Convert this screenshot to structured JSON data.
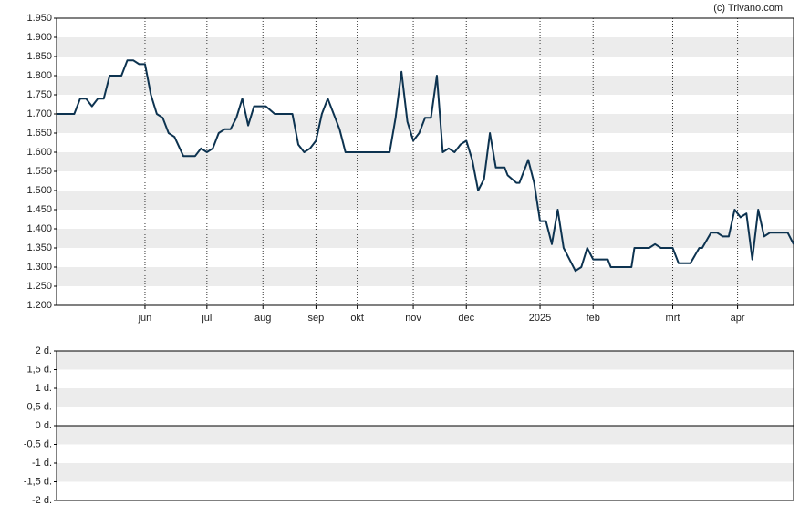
{
  "credit": "(c) Trivano.com",
  "chart_data": [
    {
      "type": "line",
      "x": [
        0,
        6,
        8,
        10,
        12,
        14,
        16,
        18,
        22,
        24,
        26,
        28,
        30,
        32,
        34,
        36,
        38,
        40,
        43,
        47,
        49,
        51,
        53,
        55,
        57,
        59,
        61,
        63,
        65,
        67,
        71,
        74,
        80,
        82,
        84,
        86,
        88,
        90,
        92,
        94,
        96,
        98,
        113,
        115,
        117,
        119,
        121,
        123,
        125,
        127,
        129,
        131,
        133,
        135,
        137,
        139,
        141,
        143,
        145,
        147,
        149,
        152,
        153,
        156,
        157,
        160,
        162,
        164,
        166,
        168,
        170,
        172,
        174,
        176,
        178,
        180,
        182,
        187,
        188,
        195,
        196,
        201,
        203,
        205,
        209,
        211,
        215,
        218,
        219,
        222,
        224,
        226,
        228,
        230,
        232,
        234,
        236,
        238,
        240,
        242,
        248,
        250
      ],
      "series": [
        {
          "color": "#0d3350",
          "values": [
            1.7,
            1.7,
            1.74,
            1.74,
            1.72,
            1.74,
            1.74,
            1.8,
            1.8,
            1.84,
            1.84,
            1.83,
            1.83,
            1.75,
            1.7,
            1.69,
            1.65,
            1.64,
            1.59,
            1.59,
            1.61,
            1.6,
            1.61,
            1.65,
            1.66,
            1.66,
            1.69,
            1.74,
            1.67,
            1.72,
            1.72,
            1.7,
            1.7,
            1.62,
            1.6,
            1.61,
            1.63,
            1.7,
            1.74,
            1.7,
            1.66,
            1.6,
            1.6,
            1.69,
            1.81,
            1.68,
            1.63,
            1.65,
            1.69,
            1.69,
            1.8,
            1.6,
            1.61,
            1.6,
            1.62,
            1.63,
            1.58,
            1.5,
            1.53,
            1.65,
            1.56,
            1.56,
            1.54,
            1.52,
            1.52,
            1.58,
            1.52,
            1.42,
            1.42,
            1.36,
            1.45,
            1.35,
            1.32,
            1.29,
            1.3,
            1.35,
            1.32,
            1.32,
            1.3,
            1.3,
            1.35,
            1.35,
            1.36,
            1.35,
            1.35,
            1.31,
            1.31,
            1.35,
            1.35,
            1.39,
            1.39,
            1.38,
            1.38,
            1.45,
            1.43,
            1.44,
            1.32,
            1.45,
            1.38,
            1.39,
            1.39,
            1.36
          ]
        }
      ],
      "xlim": [
        0,
        250
      ],
      "xticks": [
        {
          "value": 30,
          "label": "jun"
        },
        {
          "value": 51,
          "label": "jul"
        },
        {
          "value": 70,
          "label": "aug"
        },
        {
          "value": 88,
          "label": "sep"
        },
        {
          "value": 102,
          "label": "okt"
        },
        {
          "value": 121,
          "label": "nov"
        },
        {
          "value": 139,
          "label": "dec"
        },
        {
          "value": 164,
          "label": "2025"
        },
        {
          "value": 182,
          "label": "feb"
        },
        {
          "value": 209,
          "label": "mrt"
        },
        {
          "value": 231,
          "label": "apr"
        }
      ],
      "ylim": [
        1.2,
        1.95
      ],
      "yticks": [
        {
          "value": 1.2,
          "label": "1.200"
        },
        {
          "value": 1.25,
          "label": "1.250"
        },
        {
          "value": 1.3,
          "label": "1.300"
        },
        {
          "value": 1.35,
          "label": "1.350"
        },
        {
          "value": 1.4,
          "label": "1.400"
        },
        {
          "value": 1.45,
          "label": "1.450"
        },
        {
          "value": 1.5,
          "label": "1.500"
        },
        {
          "value": 1.55,
          "label": "1.550"
        },
        {
          "value": 1.6,
          "label": "1.600"
        },
        {
          "value": 1.65,
          "label": "1.650"
        },
        {
          "value": 1.7,
          "label": "1.700"
        },
        {
          "value": 1.75,
          "label": "1.750"
        },
        {
          "value": 1.8,
          "label": "1.800"
        },
        {
          "value": 1.85,
          "label": "1.850"
        },
        {
          "value": 1.9,
          "label": "1.900"
        },
        {
          "value": 1.95,
          "label": "1.950"
        }
      ],
      "grid": true
    },
    {
      "type": "line",
      "series": [],
      "ylim": [
        -2,
        2
      ],
      "yticks": [
        {
          "value": -2,
          "label": "-2 d."
        },
        {
          "value": -1.5,
          "label": "-1,5 d."
        },
        {
          "value": -1,
          "label": "-1 d."
        },
        {
          "value": -0.5,
          "label": "-0,5 d."
        },
        {
          "value": 0,
          "label": "0 d."
        },
        {
          "value": 0.5,
          "label": "0,5 d."
        },
        {
          "value": 1,
          "label": "1 d."
        },
        {
          "value": 1.5,
          "label": "1,5 d."
        },
        {
          "value": 2,
          "label": "2 d."
        }
      ],
      "grid": true
    }
  ]
}
